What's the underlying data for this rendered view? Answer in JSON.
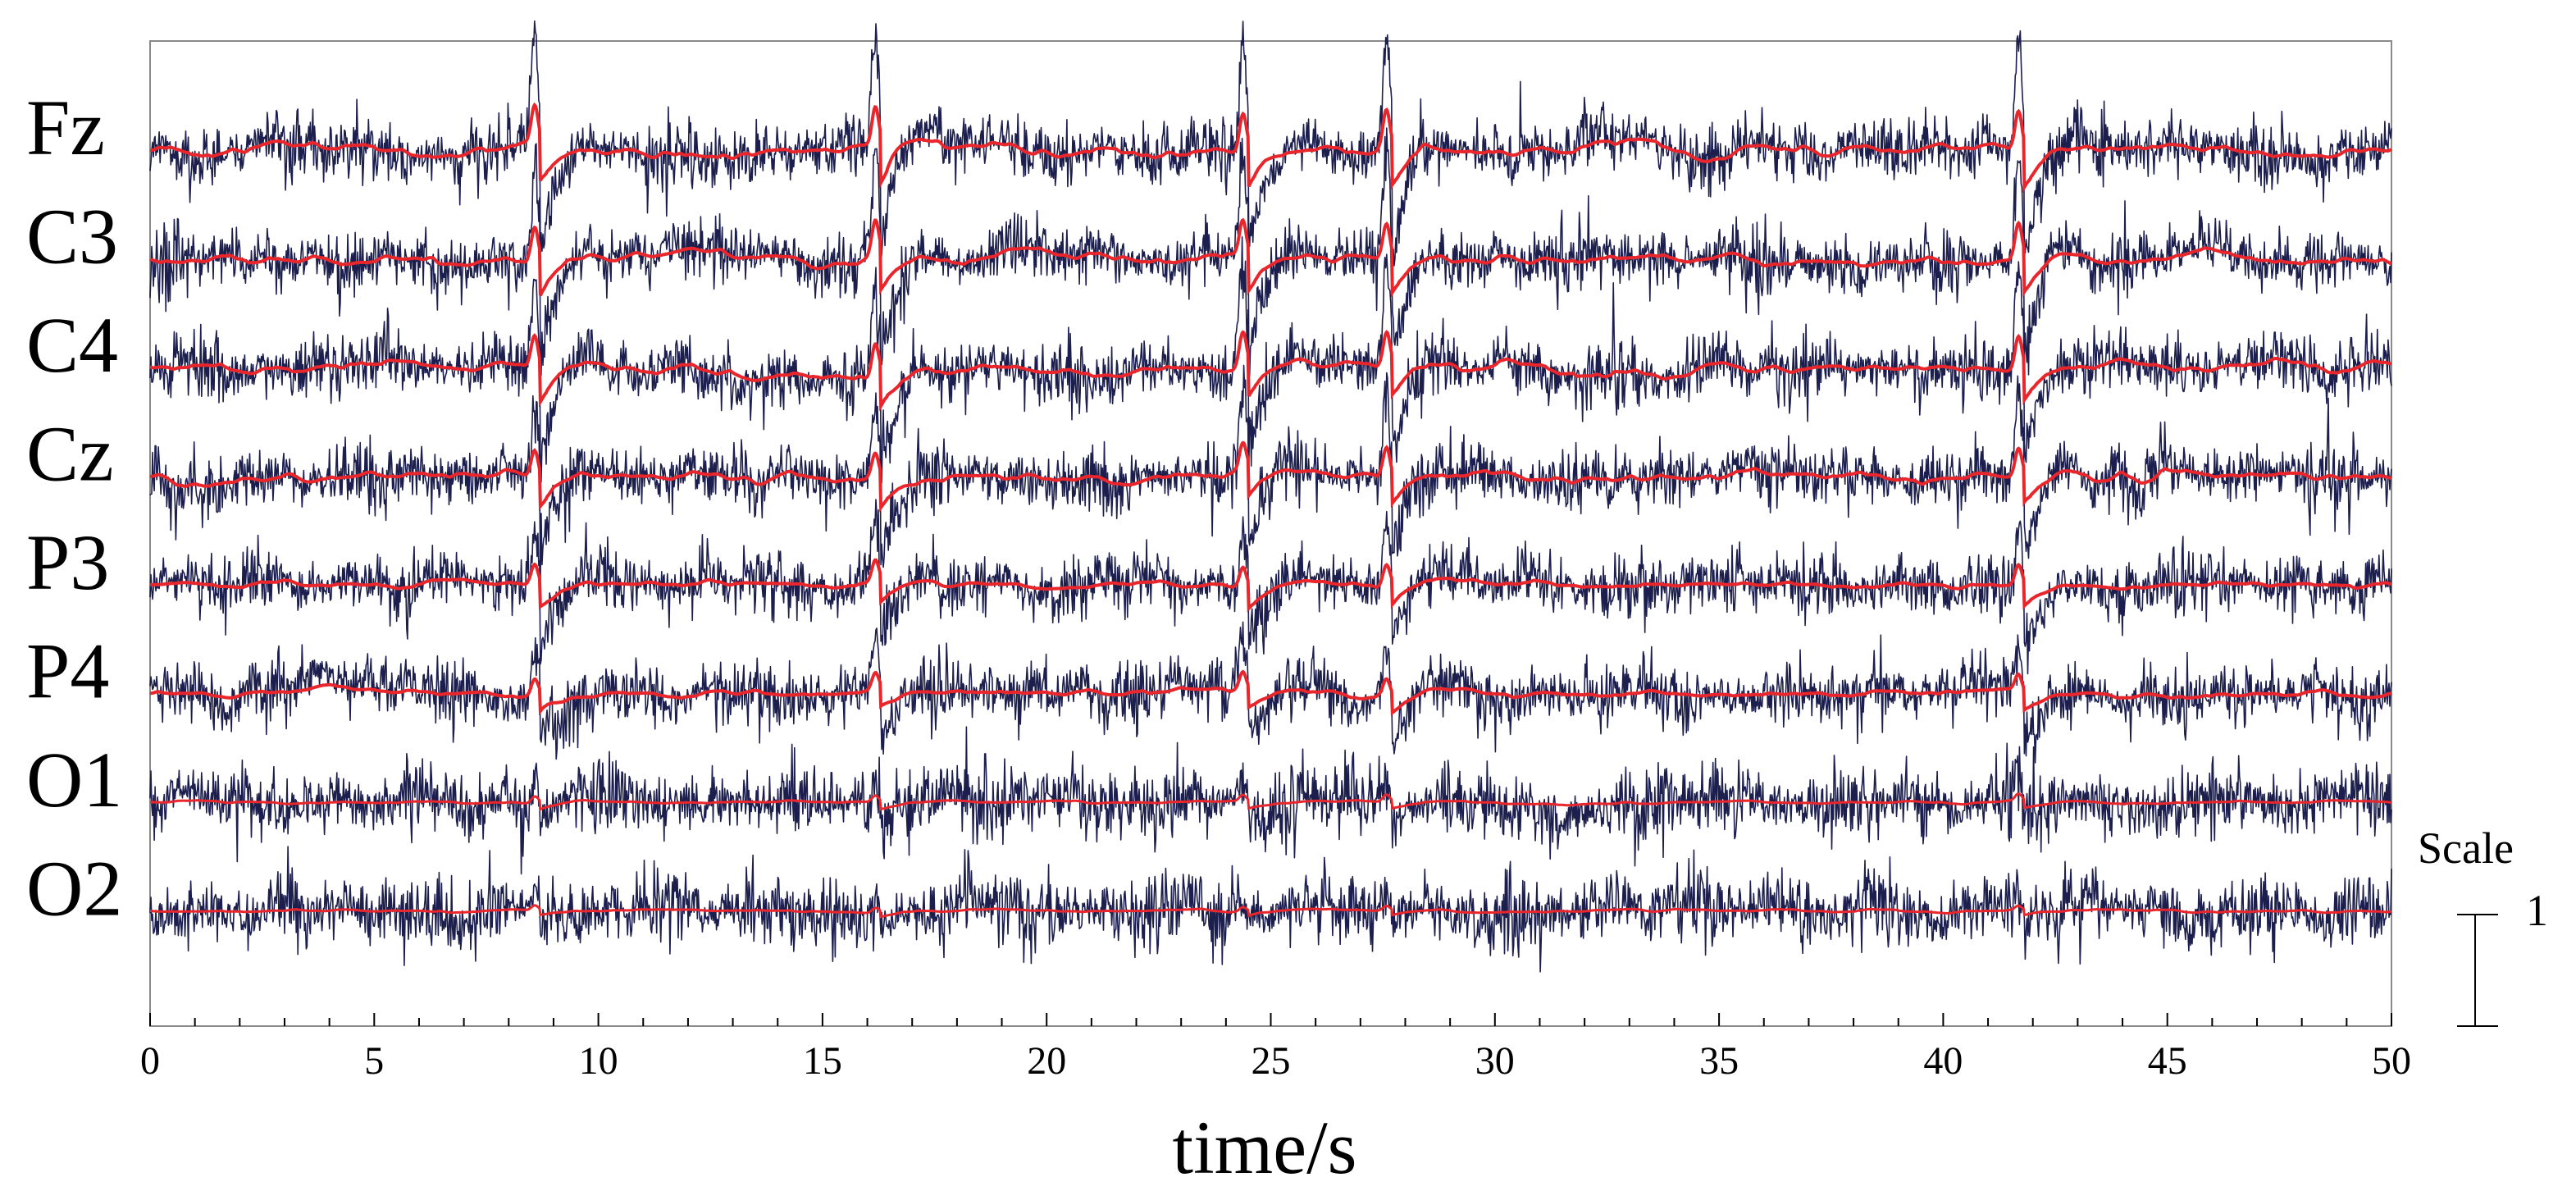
{
  "chart_data": {
    "type": "line",
    "xlabel": "time/s",
    "xlim": [
      0,
      50
    ],
    "xticks_labeled": [
      0,
      5,
      10,
      15,
      20,
      25,
      30,
      35,
      40,
      45,
      50
    ],
    "xticks_minor_step": 1,
    "grid": false,
    "legend": "none",
    "channels": [
      "Fz",
      "C3",
      "C4",
      "Cz",
      "P3",
      "P4",
      "O1",
      "O2"
    ],
    "series": [
      {
        "role": "raw EEG",
        "color": "#1c1f4e"
      },
      {
        "role": "smoothed",
        "color": "#e8262b"
      }
    ],
    "artifact_times": [
      8.7,
      16.3,
      24.5,
      27.7,
      41.8
    ],
    "artifact_peak_by_channel": [
      1.0,
      0.92,
      0.85,
      0.72,
      0.55,
      0.45,
      0.18,
      0.12
    ],
    "scale": {
      "label": "Scale",
      "value": "1"
    }
  }
}
